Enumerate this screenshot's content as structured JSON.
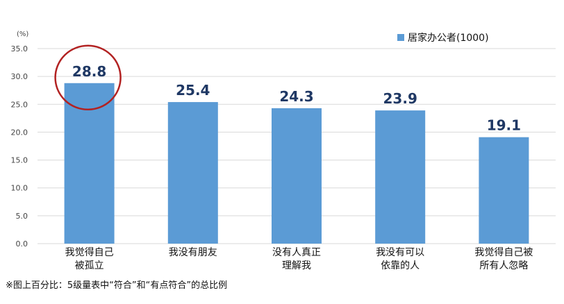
{
  "chart_data": {
    "type": "bar",
    "unit_label": "(%)",
    "categories": [
      [
        "我觉得自己",
        "被孤立"
      ],
      [
        "我没有朋友"
      ],
      [
        "没有人真正",
        "理解我"
      ],
      [
        "我没有可以",
        "依靠的人"
      ],
      [
        "我觉得自己被",
        "所有人忽略"
      ]
    ],
    "series": [
      {
        "name": "居家办公者(1000)",
        "values": [
          28.8,
          25.4,
          24.3,
          23.9,
          19.1
        ],
        "value_labels": [
          "28.8",
          "25.4",
          "24.3",
          "23.9",
          "19.1"
        ],
        "color": "#5b9bd5"
      }
    ],
    "ylim": [
      0,
      35
    ],
    "yticks": [
      "0.0",
      "5.0",
      "10.0",
      "15.0",
      "20.0",
      "25.0",
      "30.0",
      "35.0"
    ],
    "grid": true,
    "gridColor": "#d9d9d9",
    "legend_position": "top-right",
    "highlight": {
      "category_index": 0,
      "shape": "circle",
      "color": "#b22222"
    },
    "footnote": "※图上百分比：5级量表中“符合”和“有点符合”的总比例"
  }
}
